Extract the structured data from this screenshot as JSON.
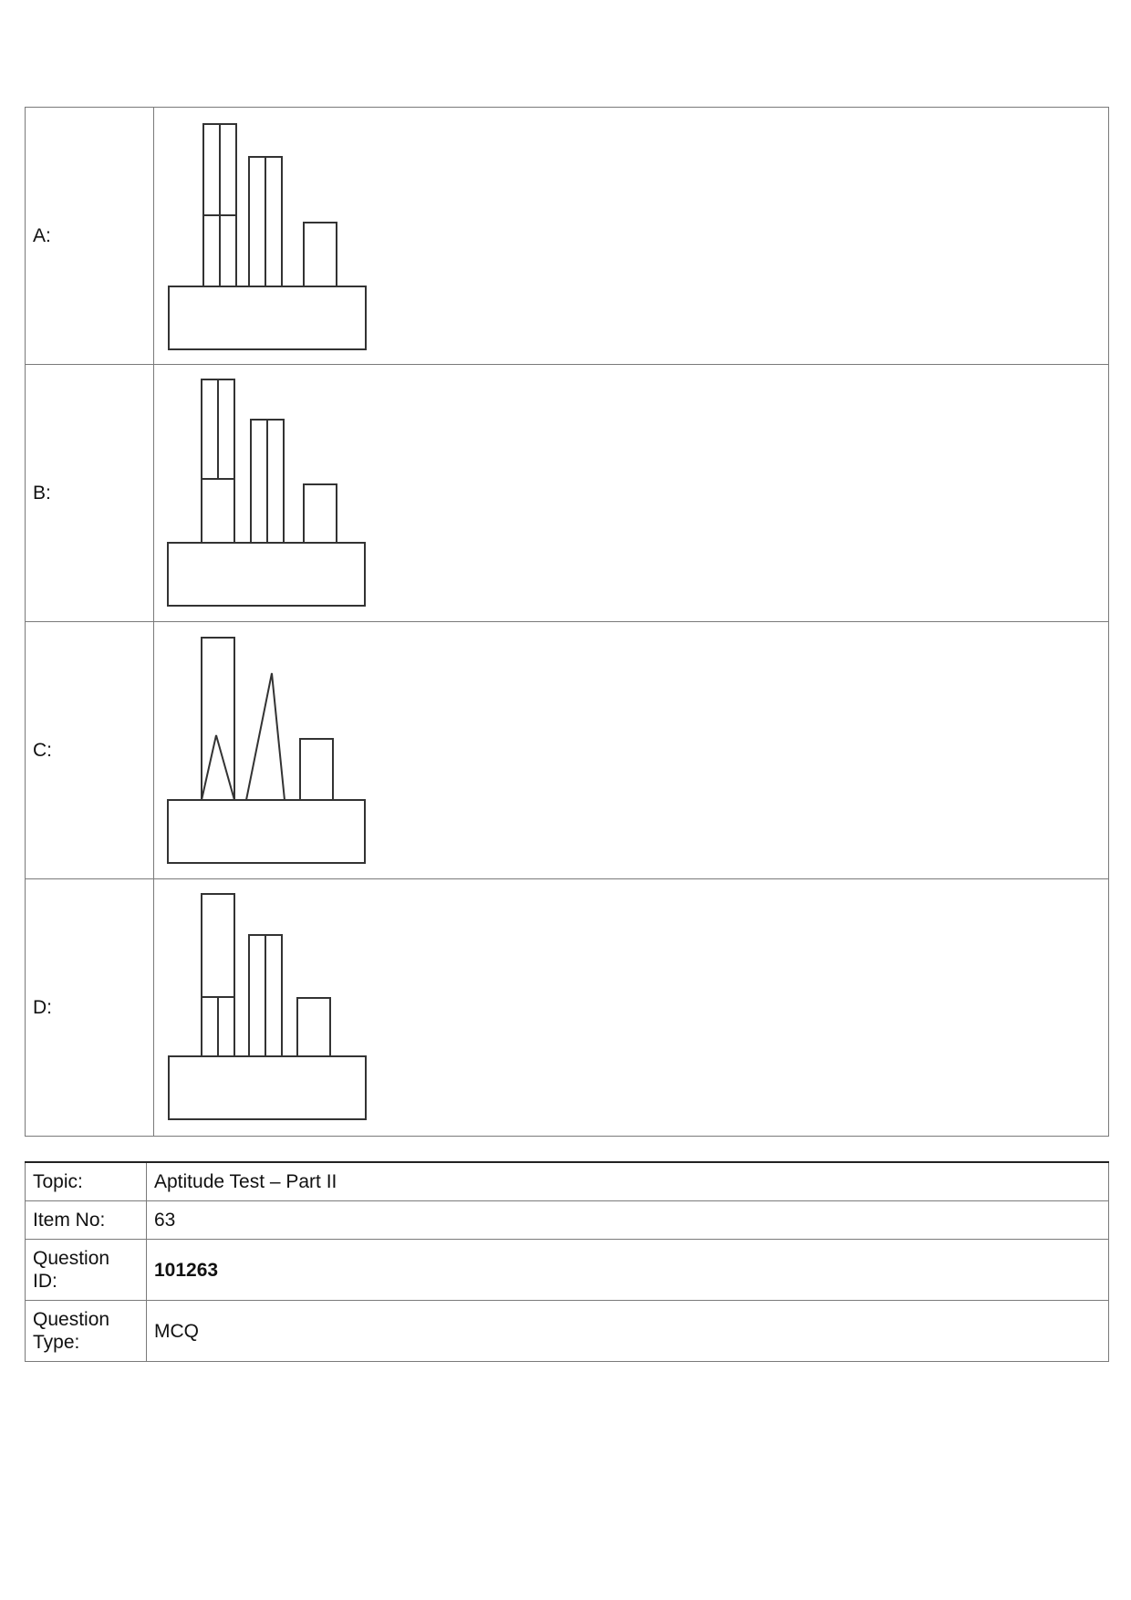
{
  "options": [
    {
      "label": "A:",
      "figure": "option-a-figure"
    },
    {
      "label": "B:",
      "figure": "option-b-figure"
    },
    {
      "label": "C:",
      "figure": "option-c-figure"
    },
    {
      "label": "D:",
      "figure": "option-d-figure"
    }
  ],
  "info": {
    "topic_label": "Topic:",
    "topic_value": "Aptitude Test – Part II",
    "item_no_label": "Item No:",
    "item_no_value": "63",
    "question_id_label": "Question ID:",
    "question_id_value": "101263",
    "question_type_label": "Question Type:",
    "question_type_value": "MCQ"
  }
}
